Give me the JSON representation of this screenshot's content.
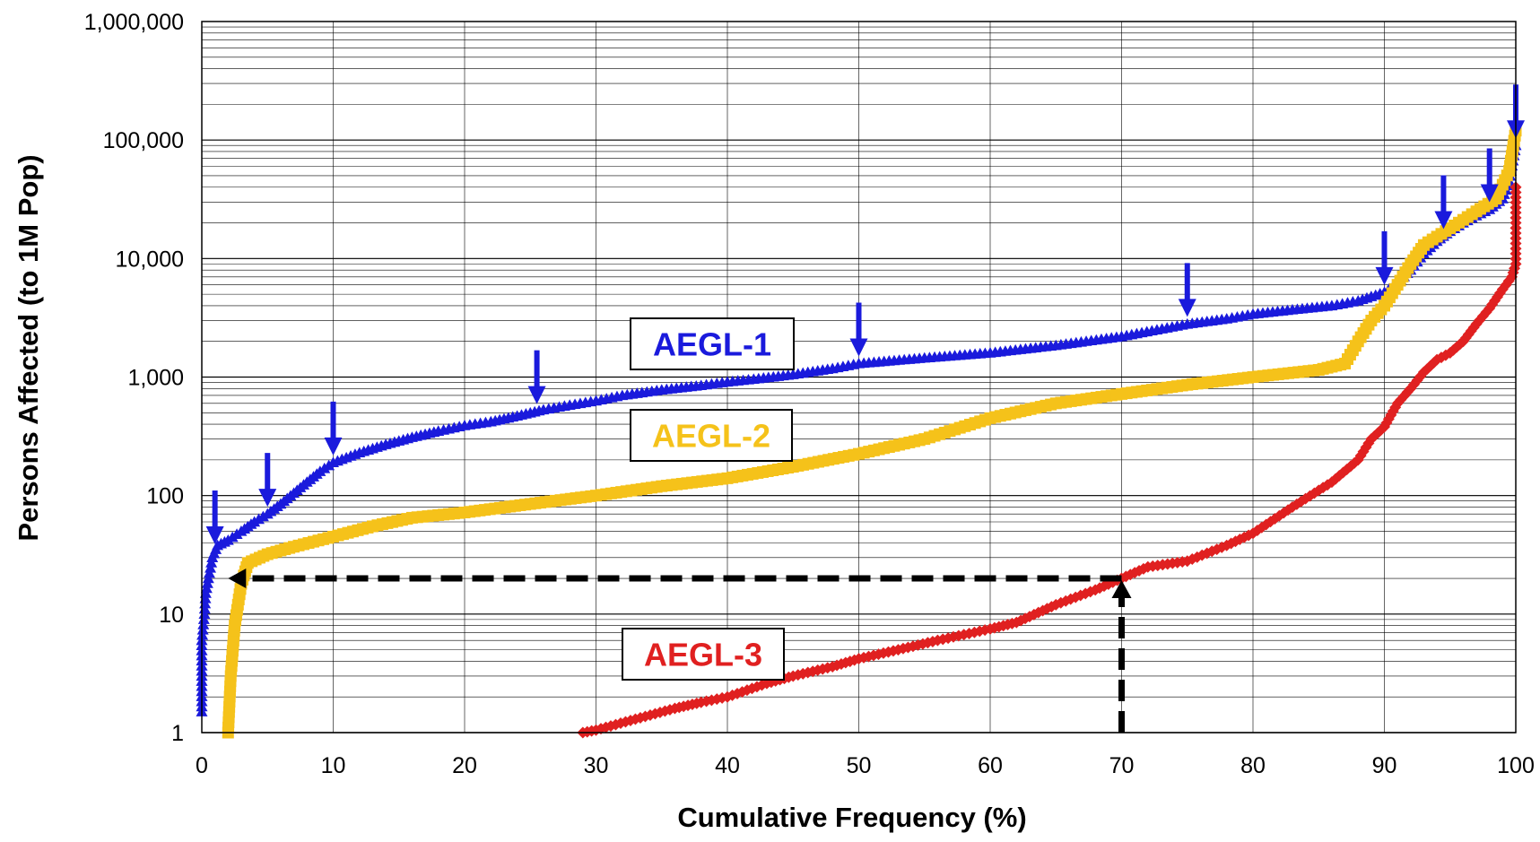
{
  "chart_data": {
    "type": "scatter",
    "xlabel": "Cumulative Frequency (%)",
    "ylabel": "Persons Affected (to 1M Pop)",
    "xlim": [
      0,
      100
    ],
    "ylim": [
      1,
      1000000
    ],
    "yscale": "log",
    "grid": true,
    "x_ticks": [
      "0",
      "10",
      "20",
      "30",
      "40",
      "50",
      "60",
      "70",
      "80",
      "90",
      "100"
    ],
    "y_ticks": [
      "1",
      "10",
      "100",
      "1,000",
      "10,000",
      "100,000",
      "1,000,000"
    ],
    "series": [
      {
        "name": "AEGL-1",
        "color": "#1a1adc",
        "marker": "triangle",
        "points": [
          [
            0,
            1.5
          ],
          [
            0,
            3
          ],
          [
            0,
            6
          ],
          [
            0.2,
            10
          ],
          [
            0.3,
            15
          ],
          [
            0.5,
            20
          ],
          [
            0.8,
            30
          ],
          [
            1.2,
            38
          ],
          [
            2,
            42
          ],
          [
            3,
            50
          ],
          [
            4,
            60
          ],
          [
            5,
            70
          ],
          [
            6,
            85
          ],
          [
            7,
            105
          ],
          [
            8,
            130
          ],
          [
            9,
            160
          ],
          [
            10,
            190
          ],
          [
            12,
            230
          ],
          [
            14,
            270
          ],
          [
            16,
            310
          ],
          [
            18,
            350
          ],
          [
            20,
            390
          ],
          [
            22,
            420
          ],
          [
            24,
            470
          ],
          [
            26,
            530
          ],
          [
            28,
            580
          ],
          [
            30,
            630
          ],
          [
            32,
            700
          ],
          [
            35,
            780
          ],
          [
            38,
            850
          ],
          [
            40,
            910
          ],
          [
            42,
            960
          ],
          [
            45,
            1050
          ],
          [
            48,
            1180
          ],
          [
            50,
            1300
          ],
          [
            55,
            1450
          ],
          [
            60,
            1600
          ],
          [
            65,
            1850
          ],
          [
            70,
            2200
          ],
          [
            75,
            2800
          ],
          [
            78,
            3100
          ],
          [
            80,
            3400
          ],
          [
            83,
            3700
          ],
          [
            86,
            4000
          ],
          [
            88,
            4400
          ],
          [
            90,
            5200
          ],
          [
            91,
            6200
          ],
          [
            92,
            8000
          ],
          [
            93,
            11000
          ],
          [
            94,
            14000
          ],
          [
            95,
            17000
          ],
          [
            96,
            20000
          ],
          [
            97,
            23000
          ],
          [
            98,
            26000
          ],
          [
            99,
            32000
          ],
          [
            99.5,
            45000
          ],
          [
            100,
            90000
          ]
        ]
      },
      {
        "name": "AEGL-2",
        "color": "#f5c21a",
        "marker": "square",
        "points": [
          [
            2,
            1
          ],
          [
            2.2,
            3
          ],
          [
            2.5,
            8
          ],
          [
            3,
            18
          ],
          [
            3.5,
            27
          ],
          [
            5,
            32
          ],
          [
            7,
            37
          ],
          [
            10,
            45
          ],
          [
            13,
            55
          ],
          [
            16,
            65
          ],
          [
            20,
            72
          ],
          [
            25,
            85
          ],
          [
            30,
            100
          ],
          [
            35,
            120
          ],
          [
            40,
            140
          ],
          [
            45,
            175
          ],
          [
            50,
            225
          ],
          [
            55,
            300
          ],
          [
            60,
            450
          ],
          [
            65,
            600
          ],
          [
            70,
            720
          ],
          [
            75,
            860
          ],
          [
            80,
            1000
          ],
          [
            85,
            1150
          ],
          [
            87,
            1300
          ],
          [
            88,
            2000
          ],
          [
            89,
            3000
          ],
          [
            90,
            4000
          ],
          [
            91,
            6000
          ],
          [
            92,
            9000
          ],
          [
            93,
            13000
          ],
          [
            95,
            18000
          ],
          [
            97,
            25000
          ],
          [
            98.5,
            32000
          ],
          [
            99.5,
            55000
          ],
          [
            100,
            120000
          ]
        ]
      },
      {
        "name": "AEGL-3",
        "color": "#e02020",
        "marker": "diamond",
        "points": [
          [
            29,
            1
          ],
          [
            30,
            1.05
          ],
          [
            33,
            1.3
          ],
          [
            36,
            1.6
          ],
          [
            38,
            1.8
          ],
          [
            40,
            2
          ],
          [
            43,
            2.6
          ],
          [
            45,
            3
          ],
          [
            48,
            3.6
          ],
          [
            50,
            4.2
          ],
          [
            53,
            5
          ],
          [
            56,
            6
          ],
          [
            60,
            7.5
          ],
          [
            62,
            8.5
          ],
          [
            65,
            12
          ],
          [
            68,
            16
          ],
          [
            70,
            20
          ],
          [
            72,
            25
          ],
          [
            75,
            28
          ],
          [
            78,
            38
          ],
          [
            80,
            48
          ],
          [
            83,
            80
          ],
          [
            86,
            130
          ],
          [
            88,
            200
          ],
          [
            89,
            300
          ],
          [
            90,
            380
          ],
          [
            91,
            600
          ],
          [
            92,
            800
          ],
          [
            93,
            1100
          ],
          [
            94,
            1400
          ],
          [
            95,
            1600
          ],
          [
            96,
            2000
          ],
          [
            97,
            2800
          ],
          [
            98,
            3800
          ],
          [
            99,
            5500
          ],
          [
            99.7,
            7000
          ],
          [
            100,
            9000
          ],
          [
            100,
            20000
          ],
          [
            100,
            40000
          ]
        ]
      }
    ],
    "callouts": [
      {
        "text": "AEGL-1",
        "color": "#1a1adc"
      },
      {
        "text": "AEGL-2",
        "color": "#f5c21a"
      },
      {
        "text": "AEGL-3",
        "color": "#e02020"
      }
    ],
    "blue_arrow_x": [
      1,
      5,
      10,
      25.5,
      50,
      75,
      90,
      94.5,
      98,
      100
    ],
    "annotation_arrows": {
      "vertical": {
        "x": 70,
        "from_y": 1,
        "to_y": 20
      },
      "horizontal": {
        "y": 20,
        "from_x": 70,
        "to_x": 2
      }
    }
  }
}
